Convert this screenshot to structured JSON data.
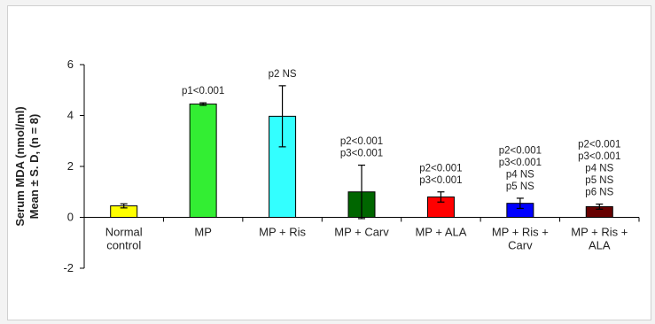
{
  "chart_data": {
    "type": "bar",
    "ylabel_lines": [
      "Serum MDA (nmol/ml)",
      "Mean ± S. D, (n = 8)"
    ],
    "ylim": [
      -2,
      6
    ],
    "yticks": [
      -2,
      0,
      2,
      4,
      6
    ],
    "grid": false,
    "categories": [
      [
        "Normal",
        "control"
      ],
      [
        "MP"
      ],
      [
        "MP + Ris"
      ],
      [
        "MP + Carv"
      ],
      [
        "MP + ALA"
      ],
      [
        "MP + Ris +",
        "Carv"
      ],
      [
        "MP + Ris +",
        "ALA"
      ]
    ],
    "values": [
      0.45,
      4.45,
      3.97,
      1.0,
      0.8,
      0.55,
      0.42
    ],
    "errors": [
      0.08,
      0.05,
      1.2,
      1.05,
      0.2,
      0.2,
      0.1
    ],
    "colors": [
      "#ffff00",
      "#33ee33",
      "#33ffff",
      "#006600",
      "#ff0000",
      "#0000ff",
      "#660000"
    ],
    "annotations": [
      [],
      [
        "p1<0.001"
      ],
      [
        "p2 NS"
      ],
      [
        "p2<0.001",
        "p3<0.001"
      ],
      [
        "p2<0.001",
        "p3<0.001"
      ],
      [
        "p2<0.001",
        "p3<0.001",
        "p4 NS",
        "p5 NS"
      ],
      [
        "p2<0.001",
        "p3<0.001",
        "p4 NS",
        "p5 NS",
        "p6 NS"
      ]
    ]
  }
}
